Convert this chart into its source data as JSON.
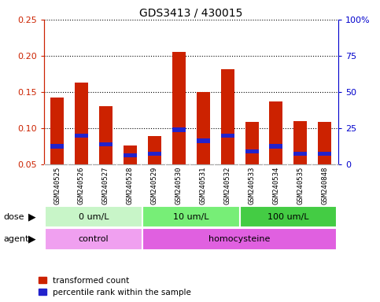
{
  "title": "GDS3413 / 430015",
  "samples": [
    "GSM240525",
    "GSM240526",
    "GSM240527",
    "GSM240528",
    "GSM240529",
    "GSM240530",
    "GSM240531",
    "GSM240532",
    "GSM240533",
    "GSM240534",
    "GSM240535",
    "GSM240848"
  ],
  "red_values": [
    0.143,
    0.163,
    0.131,
    0.076,
    0.089,
    0.205,
    0.15,
    0.182,
    0.109,
    0.137,
    0.11,
    0.109
  ],
  "blue_values": [
    0.075,
    0.09,
    0.078,
    0.063,
    0.065,
    0.098,
    0.083,
    0.09,
    0.068,
    0.075,
    0.065,
    0.065
  ],
  "ylim_left": [
    0.05,
    0.25
  ],
  "ylim_right": [
    0,
    100
  ],
  "yticks_left": [
    0.05,
    0.1,
    0.15,
    0.2,
    0.25
  ],
  "yticks_right": [
    0,
    25,
    50,
    75,
    100
  ],
  "ytick_right_labels": [
    "0",
    "25",
    "50",
    "75",
    "100%"
  ],
  "dose_groups": [
    {
      "label": "0 um/L",
      "start": 0,
      "end": 4,
      "color": "#c8f5c8"
    },
    {
      "label": "10 um/L",
      "start": 4,
      "end": 8,
      "color": "#77ee77"
    },
    {
      "label": "100 um/L",
      "start": 8,
      "end": 12,
      "color": "#44cc44"
    }
  ],
  "agent_groups": [
    {
      "label": "control",
      "start": 0,
      "end": 4,
      "color": "#f0a0f0"
    },
    {
      "label": "homocysteine",
      "start": 4,
      "end": 12,
      "color": "#e060e0"
    }
  ],
  "legend_red": "transformed count",
  "legend_blue": "percentile rank within the sample",
  "bar_width": 0.55,
  "bar_color": "#cc2200",
  "blue_color": "#2222cc",
  "left_axis_color": "#cc2200",
  "right_axis_color": "#0000cc",
  "label_bg_color": "#c8c8c8",
  "plot_bg": "#ffffff"
}
